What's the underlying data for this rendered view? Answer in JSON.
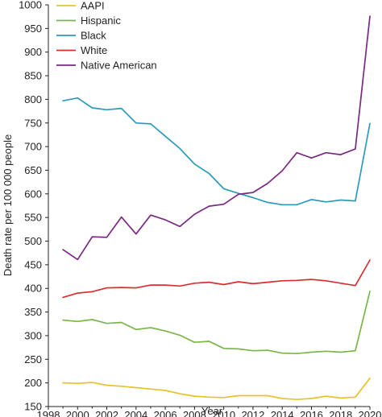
{
  "chart_data": {
    "type": "line",
    "xlabel": "Year",
    "ylabel": "Death rate per 100 000 people",
    "xlim": [
      1998,
      2020
    ],
    "ylim": [
      150,
      1000
    ],
    "x_ticks": [
      1998,
      2000,
      2002,
      2004,
      2006,
      2008,
      2010,
      2012,
      2014,
      2016,
      2018,
      2020
    ],
    "y_ticks": [
      150,
      200,
      250,
      300,
      350,
      400,
      450,
      500,
      550,
      600,
      650,
      700,
      750,
      800,
      850,
      900,
      950,
      1000
    ],
    "grid": false,
    "legend_position": "top-left",
    "x": [
      1999,
      2000,
      2001,
      2002,
      2003,
      2004,
      2005,
      2006,
      2007,
      2008,
      2009,
      2010,
      2011,
      2012,
      2013,
      2014,
      2015,
      2016,
      2017,
      2018,
      2019,
      2020
    ],
    "series": [
      {
        "name": "AAPI",
        "color": "#e8c22b",
        "values": [
          200,
          199,
          201,
          195,
          193,
          190,
          187,
          184,
          177,
          172,
          170,
          169,
          173,
          173,
          173,
          167,
          165,
          167,
          172,
          168,
          170,
          210
        ]
      },
      {
        "name": "Hispanic",
        "color": "#7ab648",
        "values": [
          333,
          330,
          334,
          326,
          328,
          313,
          317,
          310,
          301,
          286,
          288,
          273,
          272,
          268,
          269,
          263,
          262,
          265,
          267,
          265,
          268,
          394
        ]
      },
      {
        "name": "Black",
        "color": "#2b9bbd",
        "values": [
          797,
          803,
          782,
          778,
          781,
          750,
          748,
          722,
          696,
          663,
          643,
          611,
          601,
          592,
          582,
          577,
          577,
          588,
          583,
          587,
          585,
          749
        ]
      },
      {
        "name": "White",
        "color": "#d9302f",
        "values": [
          381,
          390,
          393,
          401,
          402,
          401,
          407,
          407,
          405,
          411,
          413,
          408,
          414,
          410,
          413,
          416,
          417,
          419,
          416,
          411,
          406,
          460
        ]
      },
      {
        "name": "Native American",
        "color": "#7a2a82",
        "values": [
          482,
          461,
          509,
          508,
          551,
          515,
          555,
          545,
          531,
          557,
          574,
          578,
          599,
          603,
          622,
          649,
          687,
          676,
          687,
          683,
          695,
          976
        ]
      }
    ]
  }
}
